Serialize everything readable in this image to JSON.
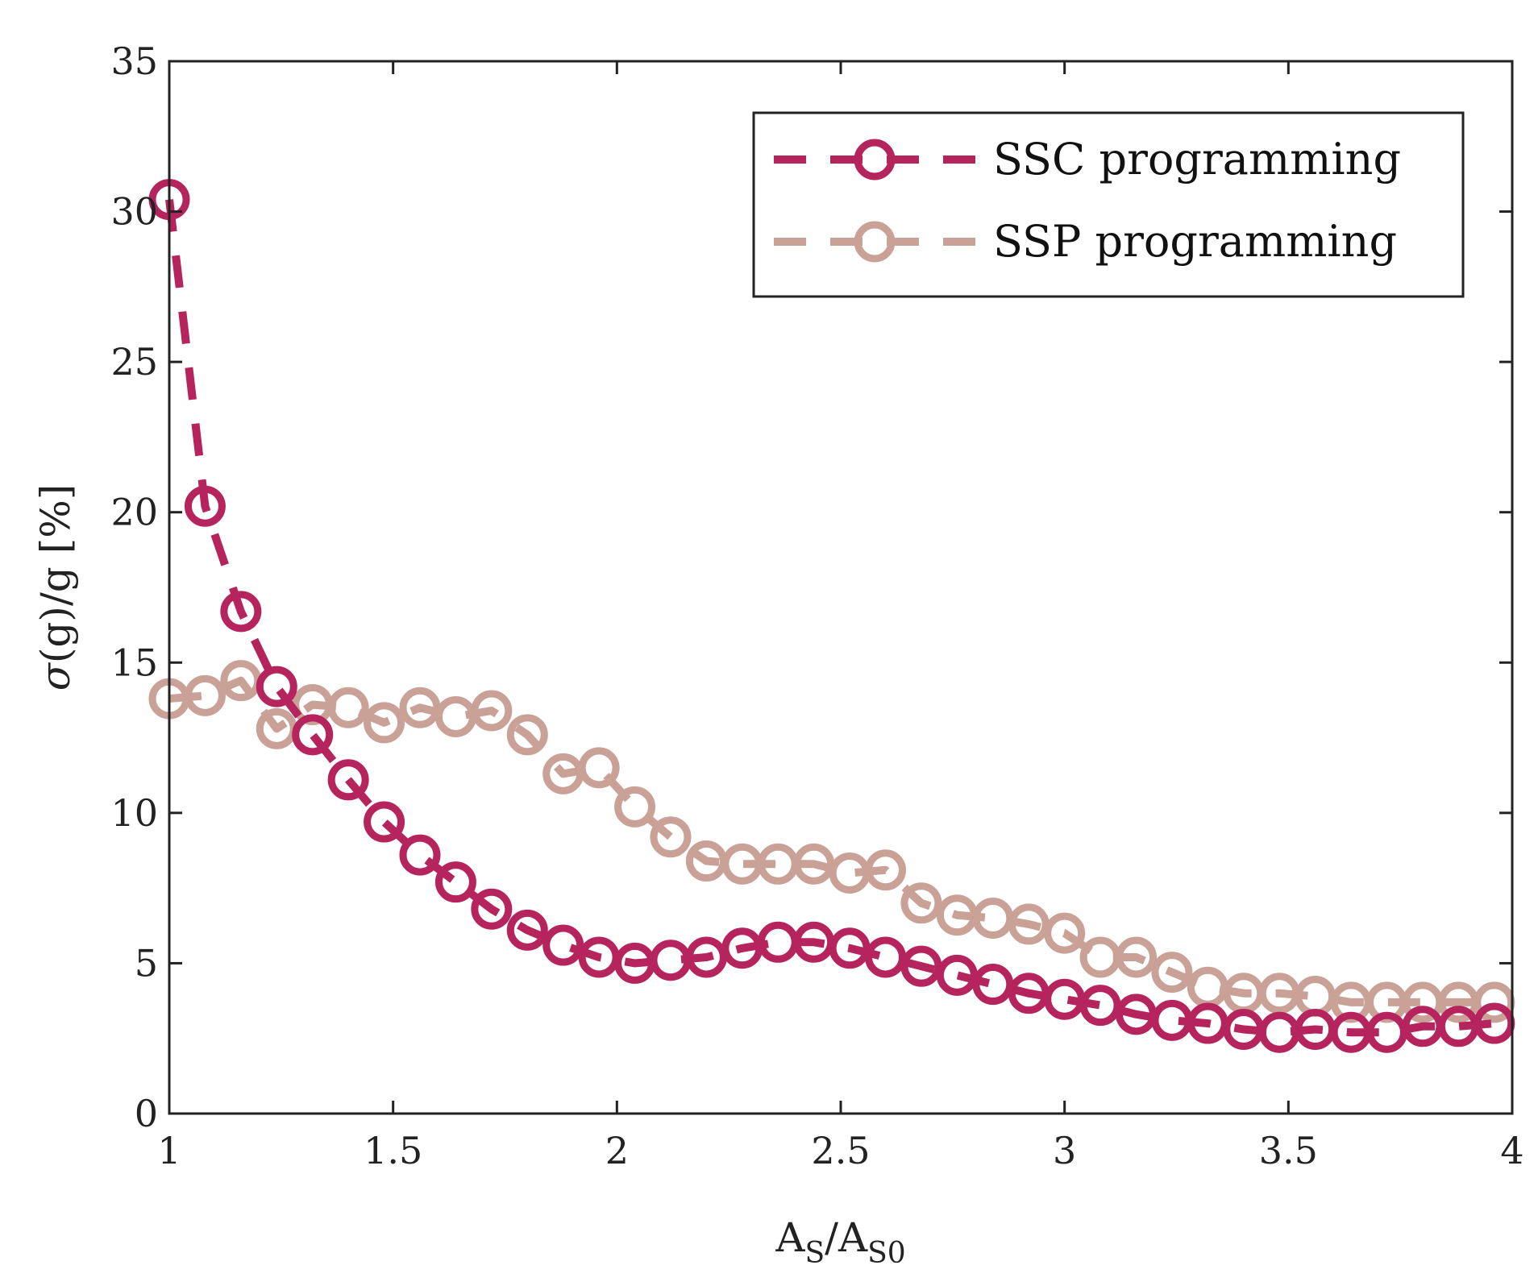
{
  "chart_data": {
    "type": "line",
    "xlim": [
      1,
      4
    ],
    "ylim": [
      0,
      35
    ],
    "x_ticks": [
      "1",
      "1.5",
      "2",
      "2.5",
      "3",
      "3.5",
      "4"
    ],
    "y_ticks": [
      "0",
      "5",
      "10",
      "15",
      "20",
      "25",
      "30",
      "35"
    ],
    "xlabel": {
      "main1": "A",
      "sub1": "S",
      "slash": "/",
      "main2": "A",
      "sub2": "S0"
    },
    "ylabel": {
      "sigma": "σ",
      "rest": "(g)/g [%]"
    },
    "grid": false,
    "legend_position": "top-right",
    "series": [
      {
        "name": "SSC programming",
        "color": "#b5245c",
        "style": "dashed",
        "marker": "circle",
        "x": [
          1.0,
          1.08,
          1.16,
          1.24,
          1.32,
          1.4,
          1.48,
          1.56,
          1.64,
          1.72,
          1.8,
          1.88,
          1.96,
          2.04,
          2.12,
          2.2,
          2.28,
          2.36,
          2.44,
          2.52,
          2.6,
          2.68,
          2.76,
          2.84,
          2.92,
          3.0,
          3.08,
          3.16,
          3.24,
          3.32,
          3.4,
          3.48,
          3.56,
          3.64,
          3.72,
          3.8,
          3.88,
          3.96
        ],
        "y": [
          30.4,
          20.2,
          16.7,
          14.2,
          12.6,
          11.1,
          9.7,
          8.6,
          7.7,
          6.8,
          6.1,
          5.6,
          5.2,
          5.0,
          5.1,
          5.2,
          5.5,
          5.7,
          5.7,
          5.5,
          5.2,
          4.9,
          4.6,
          4.3,
          4.0,
          3.8,
          3.6,
          3.3,
          3.1,
          3.0,
          2.8,
          2.7,
          2.8,
          2.7,
          2.7,
          2.9,
          2.9,
          3.0
        ]
      },
      {
        "name": "SSP programming",
        "color": "#c9a197",
        "style": "dashed",
        "marker": "circle",
        "x": [
          1.0,
          1.08,
          1.16,
          1.24,
          1.32,
          1.4,
          1.48,
          1.56,
          1.64,
          1.72,
          1.8,
          1.88,
          1.96,
          2.04,
          2.12,
          2.2,
          2.28,
          2.36,
          2.44,
          2.52,
          2.6,
          2.68,
          2.76,
          2.84,
          2.92,
          3.0,
          3.08,
          3.16,
          3.24,
          3.32,
          3.4,
          3.48,
          3.56,
          3.64,
          3.72,
          3.8,
          3.88,
          3.96
        ],
        "y": [
          13.8,
          13.9,
          14.4,
          12.8,
          13.6,
          13.5,
          13.0,
          13.5,
          13.2,
          13.4,
          12.6,
          11.3,
          11.5,
          10.2,
          9.2,
          8.4,
          8.3,
          8.3,
          8.3,
          8.0,
          8.1,
          7.0,
          6.6,
          6.5,
          6.3,
          6.0,
          5.2,
          5.2,
          4.7,
          4.2,
          4.0,
          4.0,
          3.9,
          3.7,
          3.7,
          3.7,
          3.7,
          3.7
        ]
      }
    ]
  }
}
